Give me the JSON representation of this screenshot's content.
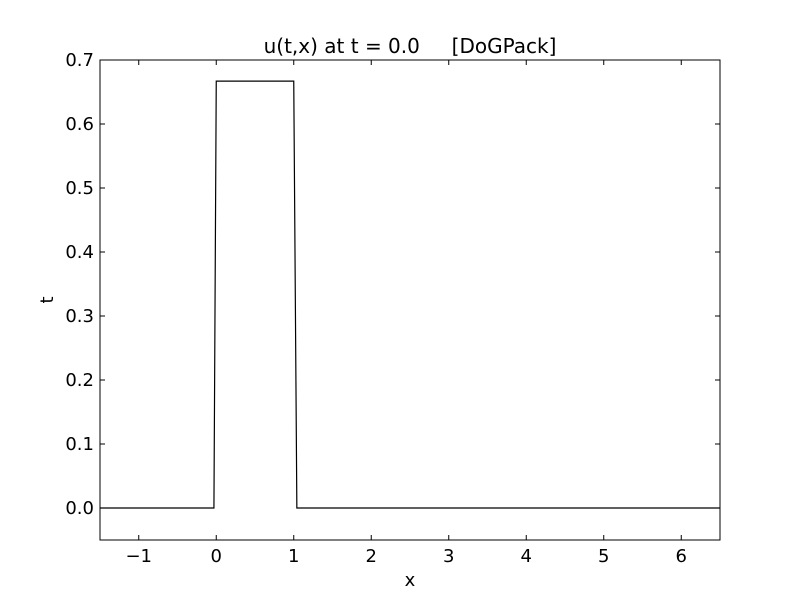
{
  "chart_data": {
    "type": "line",
    "title": "u(t,x) at t = 0.0     [DoGPack]",
    "xlabel": "x",
    "ylabel": "t",
    "xlim": [
      -1.5,
      6.5
    ],
    "ylim": [
      -0.05,
      0.7
    ],
    "grid": false,
    "xticks": [
      -1,
      0,
      1,
      2,
      3,
      4,
      5,
      6
    ],
    "xtick_labels": [
      "−1",
      "0",
      "1",
      "2",
      "3",
      "4",
      "5",
      "6"
    ],
    "yticks": [
      0.0,
      0.1,
      0.2,
      0.3,
      0.4,
      0.5,
      0.6,
      0.7
    ],
    "ytick_labels": [
      "0.0",
      "0.1",
      "0.2",
      "0.3",
      "0.4",
      "0.5",
      "0.6",
      "0.7"
    ],
    "series": [
      {
        "color": "#000000",
        "x": [
          -1.5,
          -0.03,
          0.0,
          1.0,
          1.04,
          6.5
        ],
        "y": [
          0.0,
          0.0,
          0.667,
          0.667,
          0.0,
          0.0
        ]
      }
    ]
  }
}
